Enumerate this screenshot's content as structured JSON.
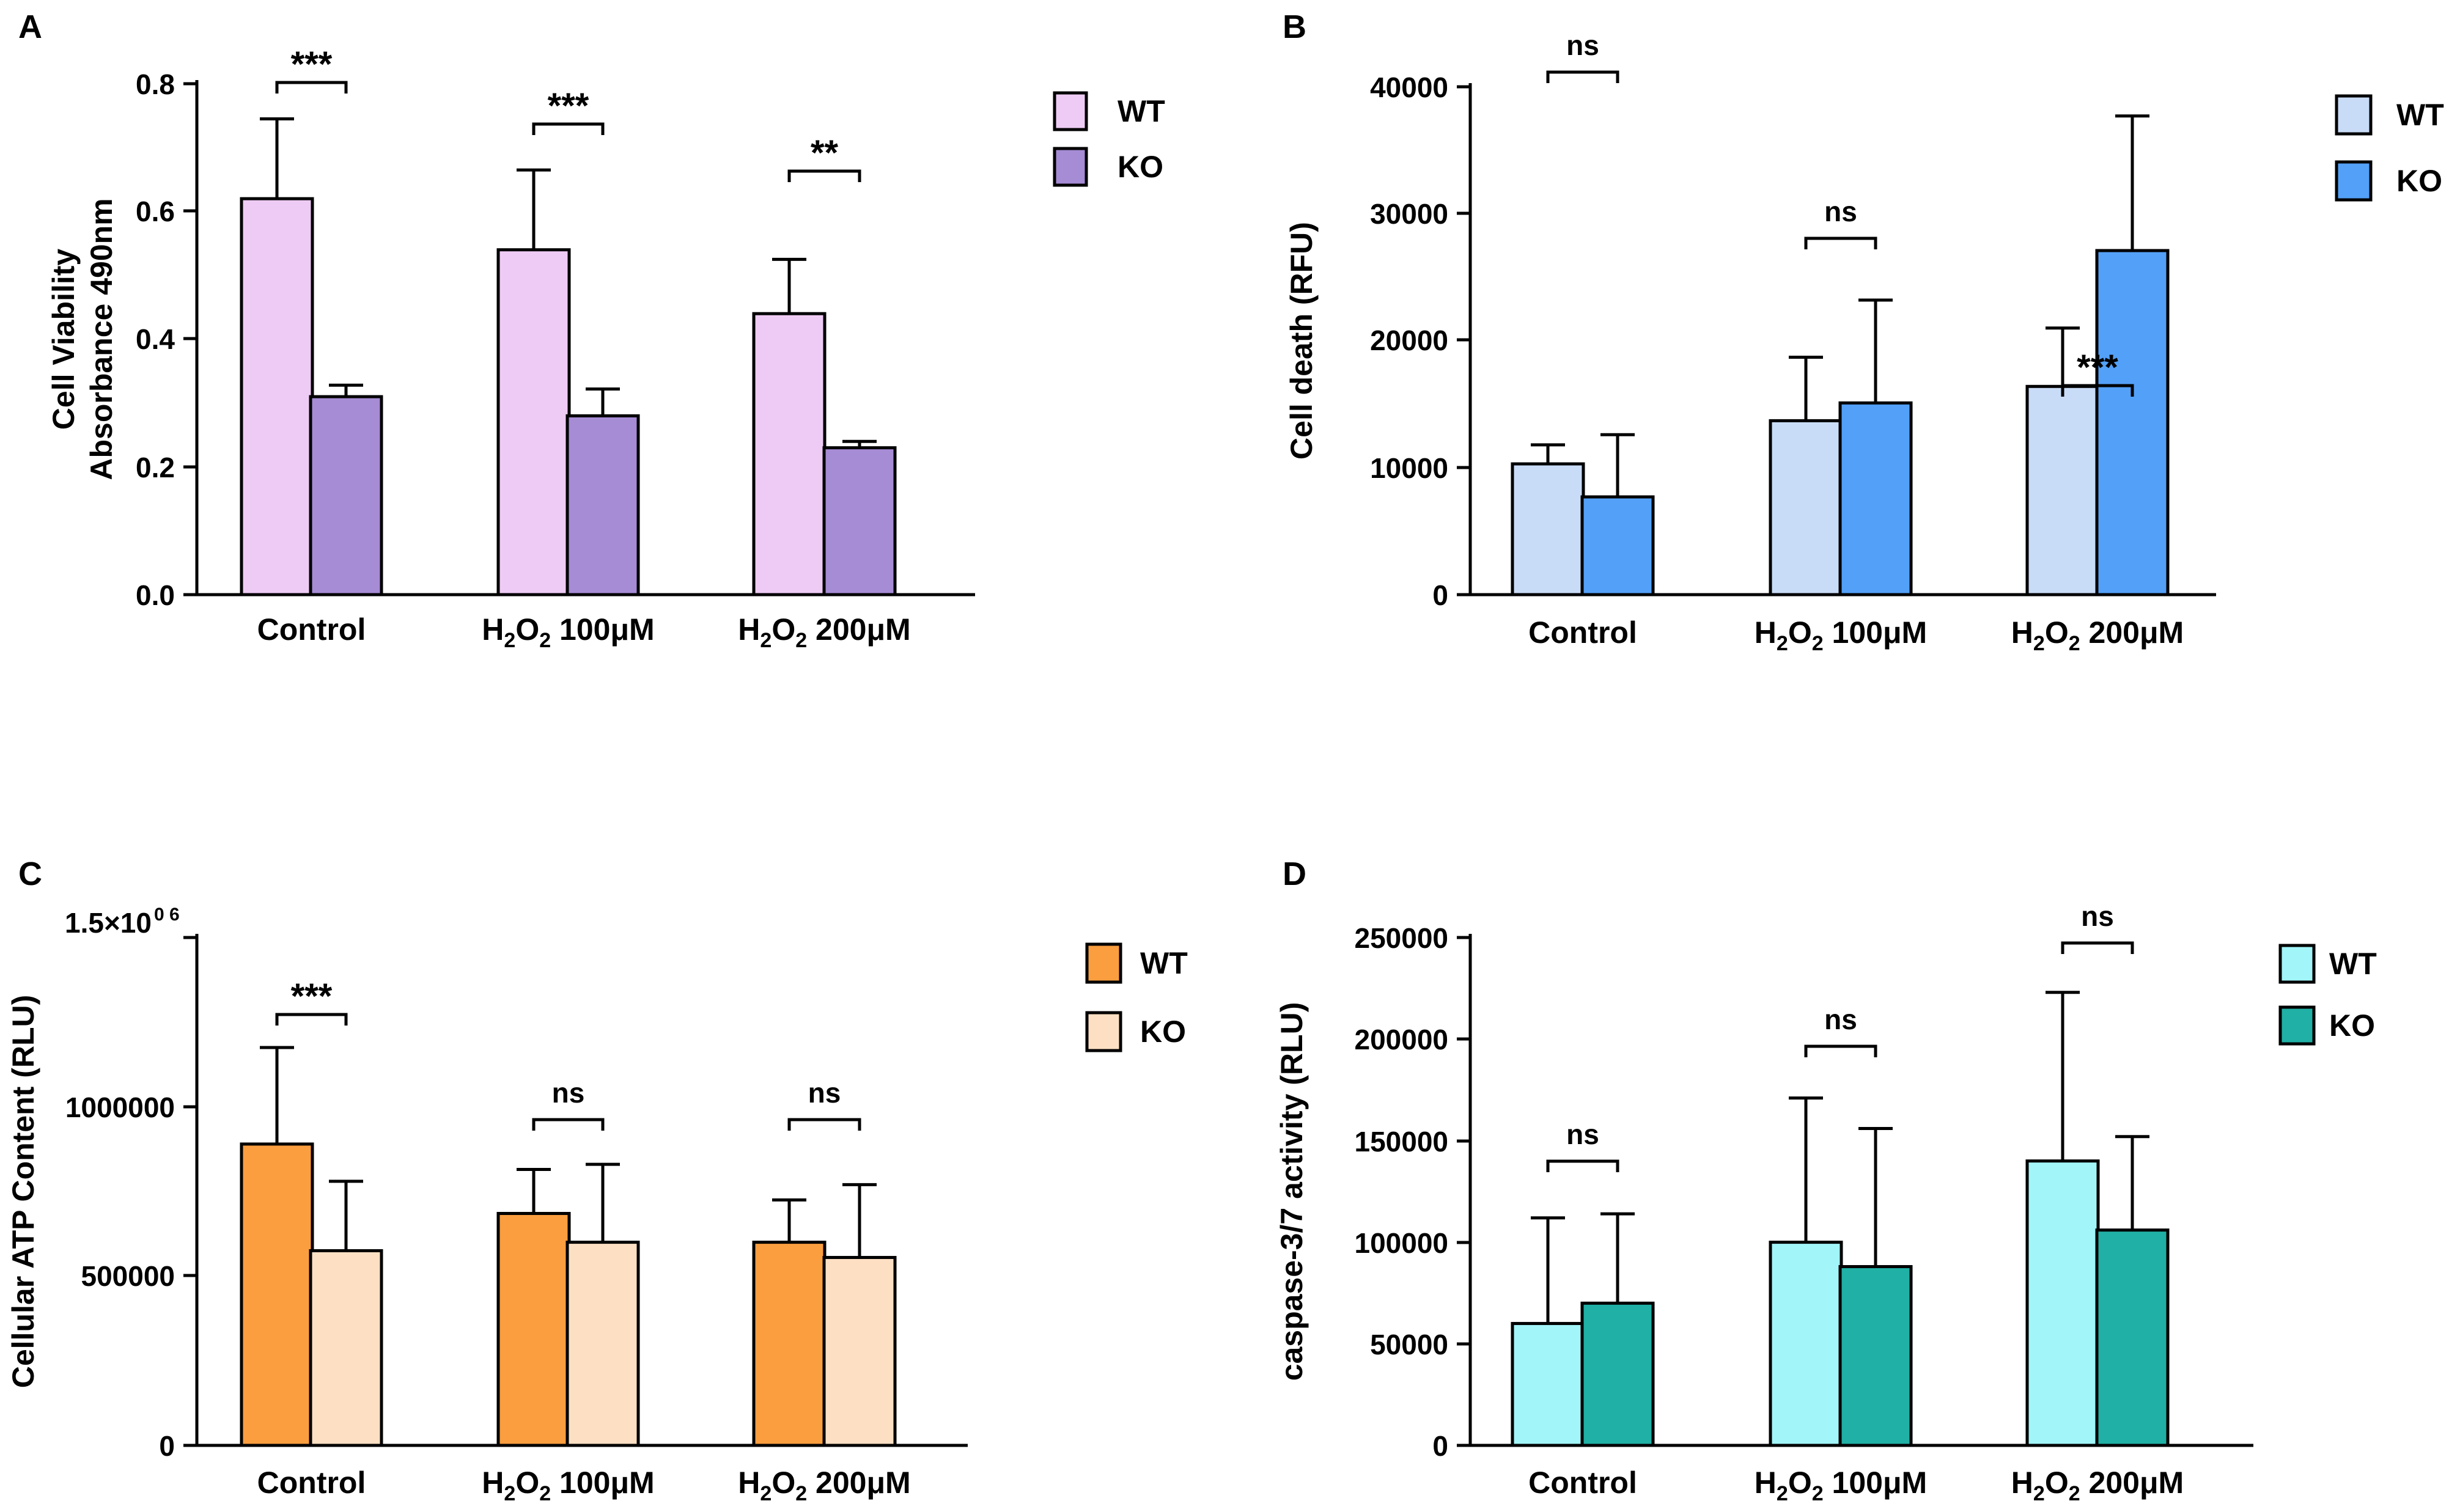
{
  "figure": {
    "panels": [
      {
        "letter": "A",
        "axis_label_lines": [
          "Cell Viability",
          "Absorbance 490nm"
        ],
        "tick_labels": [
          "0.0",
          "0.2",
          "0.4",
          "0.6",
          "0.8"
        ],
        "group_labels": [
          {
            "main": "Control"
          },
          {
            "main": "H",
            "sub1": "2",
            "mid": "O",
            "sub2": "2",
            "tail": " 100μM"
          },
          {
            "main": "H",
            "sub1": "2",
            "mid": "O",
            "sub2": "2",
            "tail": " 200μM"
          }
        ],
        "significance": [
          "***",
          "***",
          "**"
        ],
        "colors": {
          "WT": "#eecbf5",
          "KO": "#a68bd5"
        }
      },
      {
        "letter": "B",
        "axis_label_lines": [
          "Cell death (RFU)"
        ],
        "tick_labels": [
          "0",
          "10000",
          "20000",
          "30000",
          "40000"
        ],
        "group_labels": [
          {
            "main": "Control"
          },
          {
            "main": "H",
            "sub1": "2",
            "mid": "O",
            "sub2": "2",
            "tail": " 100μM"
          },
          {
            "main": "H",
            "sub1": "2",
            "mid": "O",
            "sub2": "2",
            "tail": " 200μM"
          }
        ],
        "significance": [
          "ns",
          "ns",
          "***"
        ],
        "colors": {
          "WT": "#c9dcf7",
          "KO": "#53a0f8"
        }
      },
      {
        "letter": "C",
        "axis_label_lines": [
          "Cellular ATP Content (RLU)"
        ],
        "tick_labels": [
          "0",
          "500000",
          "1000000"
        ],
        "top_tick": {
          "base": "1.5×10",
          "exponent": "0 6"
        },
        "group_labels": [
          {
            "main": "Control"
          },
          {
            "main": "H",
            "sub1": "2",
            "mid": "O",
            "sub2": "2",
            "tail": " 100μM"
          },
          {
            "main": "H",
            "sub1": "2",
            "mid": "O",
            "sub2": "2",
            "tail": " 200μM"
          }
        ],
        "significance": [
          "***",
          "ns",
          "ns"
        ],
        "colors": {
          "WT": "#fa9e3f",
          "KO": "#fde0c4"
        }
      },
      {
        "letter": "D",
        "axis_label_lines": [
          "caspase-3/7 activity  (RLU)"
        ],
        "tick_labels": [
          "0",
          "50000",
          "100000",
          "150000",
          "200000",
          "250000"
        ],
        "group_labels": [
          {
            "main": "Control"
          },
          {
            "main": "H",
            "sub1": "2",
            "mid": "O",
            "sub2": "2",
            "tail": " 100μM"
          },
          {
            "main": "H",
            "sub1": "2",
            "mid": "O",
            "sub2": "2",
            "tail": " 200μM"
          }
        ],
        "significance": [
          "ns",
          "ns",
          "ns"
        ],
        "colors": {
          "WT": "#a2f5f8",
          "KO": "#20b0a5"
        }
      }
    ]
  },
  "chart_data": [
    {
      "type": "bar",
      "panel": "A",
      "title": "",
      "xlabel": "",
      "ylabel": "Cell Viability Absorbance 490nm",
      "ylim": [
        0,
        0.8
      ],
      "categories": [
        "Control",
        "H2O2 100μM",
        "H2O2 200μM"
      ],
      "series": [
        {
          "name": "WT",
          "values": [
            0.62,
            0.54,
            0.44
          ],
          "error": [
            0.125,
            0.125,
            0.085
          ]
        },
        {
          "name": "KO",
          "values": [
            0.31,
            0.28,
            0.23
          ],
          "error": [
            0.018,
            0.042,
            0.01
          ]
        }
      ],
      "legend": [
        "WT",
        "KO"
      ],
      "legend_position": "top-right"
    },
    {
      "type": "bar",
      "panel": "B",
      "title": "",
      "xlabel": "",
      "ylabel": "Cell death (RFU)",
      "ylim": [
        0,
        40000
      ],
      "categories": [
        "Control",
        "H2O2 100μM",
        "H2O2 200μM"
      ],
      "series": [
        {
          "name": "WT",
          "values": [
            10300,
            13700,
            16400
          ],
          "error": [
            1500,
            5000,
            4600
          ]
        },
        {
          "name": "KO",
          "values": [
            7700,
            15100,
            27100
          ],
          "error": [
            4900,
            8100,
            10600
          ]
        }
      ],
      "legend": [
        "WT",
        "KO"
      ],
      "legend_position": "top-right"
    },
    {
      "type": "bar",
      "panel": "C",
      "title": "",
      "xlabel": "",
      "ylabel": "Cellular ATP Content (RLU)",
      "ylim": [
        0,
        1500000
      ],
      "categories": [
        "Control",
        "H2O2 100μM",
        "H2O2 200μM"
      ],
      "series": [
        {
          "name": "WT",
          "values": [
            890000,
            685000,
            600000
          ],
          "error": [
            285000,
            130000,
            125000
          ]
        },
        {
          "name": "KO",
          "values": [
            575000,
            600000,
            555000
          ],
          "error": [
            205000,
            230000,
            215000
          ]
        }
      ],
      "legend": [
        "WT",
        "KO"
      ],
      "legend_position": "top-right"
    },
    {
      "type": "bar",
      "panel": "D",
      "title": "",
      "xlabel": "",
      "ylabel": "caspase-3/7 activity  (RLU)",
      "ylim": [
        0,
        250000
      ],
      "categories": [
        "Control",
        "H2O2 100μM",
        "H2O2 200μM"
      ],
      "series": [
        {
          "name": "WT",
          "values": [
            60000,
            100000,
            140000
          ],
          "error": [
            52000,
            71000,
            83000
          ]
        },
        {
          "name": "KO",
          "values": [
            70000,
            88000,
            106000
          ],
          "error": [
            44000,
            68000,
            46000
          ]
        }
      ],
      "legend": [
        "WT",
        "KO"
      ],
      "legend_position": "top-right"
    }
  ]
}
